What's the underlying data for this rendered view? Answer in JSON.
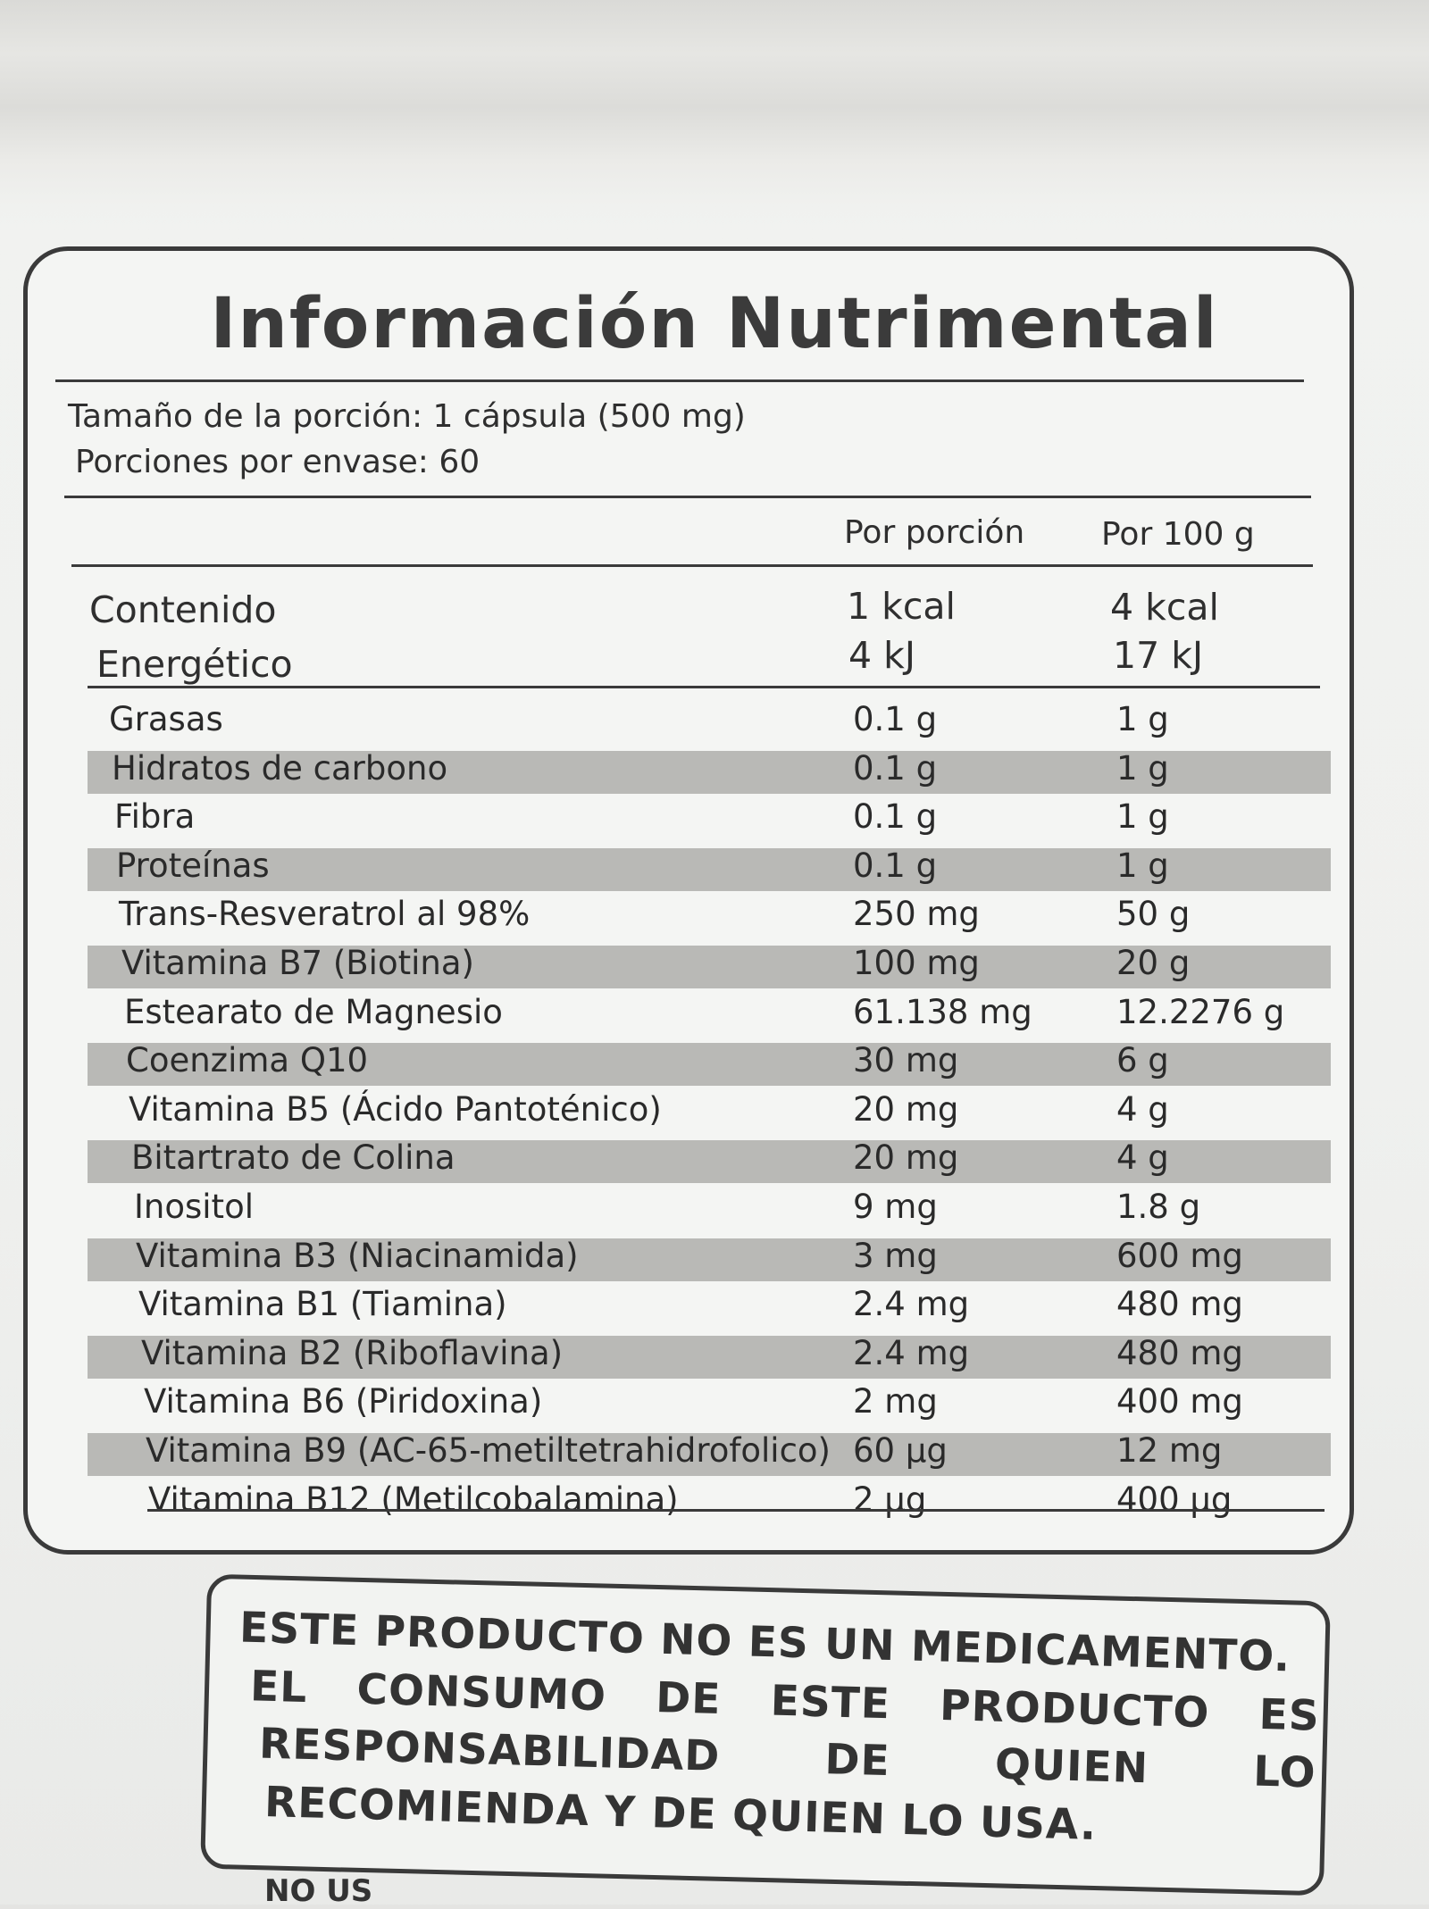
{
  "label": {
    "title": "Información Nutrimental",
    "serving_size": "Tamaño de la porción: 1 cápsula (500 mg)",
    "servings_per_container": "Porciones por envase: 60",
    "col_per_serving": "Por porción",
    "col_per_100g": "Por 100 g",
    "energy": {
      "label_line1": "Contenido",
      "label_line2": "Energético",
      "per_serving_kcal": "1 kcal",
      "per_serving_kj": "4 kJ",
      "per_100g_kcal": "4 kcal",
      "per_100g_kj": "17 kJ"
    },
    "rows": [
      {
        "name": "Grasas",
        "per_serving": "0.1 g",
        "per_100g": "1 g",
        "shaded": false
      },
      {
        "name": "Hidratos de carbono",
        "per_serving": "0.1 g",
        "per_100g": "1 g",
        "shaded": true
      },
      {
        "name": "Fibra",
        "per_serving": "0.1 g",
        "per_100g": "1 g",
        "shaded": false
      },
      {
        "name": "Proteínas",
        "per_serving": "0.1 g",
        "per_100g": "1 g",
        "shaded": true
      },
      {
        "name": "Trans-Resveratrol al 98%",
        "per_serving": "250 mg",
        "per_100g": "50 g",
        "shaded": false
      },
      {
        "name": "Vitamina B7 (Biotina)",
        "per_serving": "100 mg",
        "per_100g": "20 g",
        "shaded": true
      },
      {
        "name": "Estearato de Magnesio",
        "per_serving": "61.138 mg",
        "per_100g": "12.2276 g",
        "shaded": false
      },
      {
        "name": "Coenzima Q10",
        "per_serving": "30 mg",
        "per_100g": "6 g",
        "shaded": true
      },
      {
        "name": "Vitamina B5 (Ácido Pantoténico)",
        "per_serving": "20 mg",
        "per_100g": "4 g",
        "shaded": false
      },
      {
        "name": "Bitartrato de Colina",
        "per_serving": "20 mg",
        "per_100g": "4 g",
        "shaded": true
      },
      {
        "name": "Inositol",
        "per_serving": "9 mg",
        "per_100g": "1.8 g",
        "shaded": false
      },
      {
        "name": "Vitamina B3 (Niacinamida)",
        "per_serving": "3 mg",
        "per_100g": "600 mg",
        "shaded": true
      },
      {
        "name": "Vitamina B1 (Tiamina)",
        "per_serving": "2.4 mg",
        "per_100g": "480 mg",
        "shaded": false
      },
      {
        "name": "Vitamina B2 (Riboflavina)",
        "per_serving": "2.4 mg",
        "per_100g": "480 mg",
        "shaded": true
      },
      {
        "name": "Vitamina B6 (Piridoxina)",
        "per_serving": "2 mg",
        "per_100g": "400 mg",
        "shaded": false
      },
      {
        "name": "Vitamina B9 (AC-65-metiltetrahidrofolico)",
        "per_serving": "60 µg",
        "per_100g": "12 mg",
        "shaded": true
      },
      {
        "name": "Vitamina B12 (Metilcobalamina)",
        "per_serving": "2 µg",
        "per_100g": "400 µg",
        "shaded": false
      }
    ]
  },
  "warning": {
    "line1": "ESTE PRODUCTO NO ES UN MEDICAMENTO.",
    "line2": "EL CONSUMO DE ESTE PRODUCTO ES",
    "line3": "RESPONSABILIDAD DE QUIEN LO",
    "line4": "RECOMIENDA Y DE QUIEN LO USA."
  },
  "bottom_partial_text": "NO US",
  "colors": {
    "shade": "#b9b9b6",
    "ink": "#2a2a2a",
    "background": "#eff0ee"
  }
}
